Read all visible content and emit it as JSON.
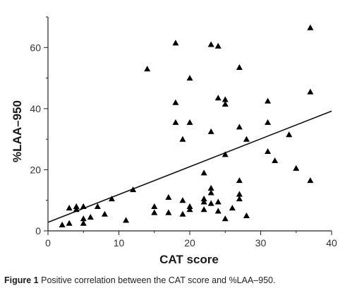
{
  "figure": {
    "label": "Figure 1",
    "caption": "Positive correlation between the CAT score and %LAA–950."
  },
  "chart_data": {
    "type": "scatter",
    "title": "",
    "xlabel": "CAT score",
    "ylabel": "%LAA–950",
    "xlim": [
      0,
      40
    ],
    "ylim": [
      0,
      70
    ],
    "xticks": [
      0,
      10,
      20,
      30,
      40
    ],
    "yticks": [
      0,
      20,
      40,
      60
    ],
    "grid": false,
    "marker": "triangle",
    "color": "#000000",
    "trendline": {
      "x": [
        0,
        40
      ],
      "y": [
        2.8,
        39.2
      ]
    },
    "points": [
      [
        2,
        2
      ],
      [
        3,
        2.5
      ],
      [
        3,
        7.5
      ],
      [
        4,
        8
      ],
      [
        4,
        7
      ],
      [
        5,
        8
      ],
      [
        5,
        4
      ],
      [
        5,
        2.5
      ],
      [
        6,
        4.5
      ],
      [
        7,
        8
      ],
      [
        8,
        5.5
      ],
      [
        9,
        10.5
      ],
      [
        11,
        3.5
      ],
      [
        12,
        13.5
      ],
      [
        14,
        53
      ],
      [
        15,
        8
      ],
      [
        15,
        6
      ],
      [
        17,
        11
      ],
      [
        17,
        6
      ],
      [
        18,
        61.5
      ],
      [
        18,
        42
      ],
      [
        18,
        35.5
      ],
      [
        19,
        30
      ],
      [
        19,
        10
      ],
      [
        19,
        5.5
      ],
      [
        20,
        50
      ],
      [
        20,
        35.5
      ],
      [
        20,
        8
      ],
      [
        20,
        7
      ],
      [
        22,
        19
      ],
      [
        22,
        10.5
      ],
      [
        22,
        9.5
      ],
      [
        22,
        7
      ],
      [
        23,
        61
      ],
      [
        23,
        32.5
      ],
      [
        23,
        14
      ],
      [
        23,
        12.5
      ],
      [
        23,
        9
      ],
      [
        24,
        60.5
      ],
      [
        24,
        43.5
      ],
      [
        24,
        9.5
      ],
      [
        24,
        6.5
      ],
      [
        25,
        43
      ],
      [
        25,
        41.5
      ],
      [
        25,
        25
      ],
      [
        25,
        4
      ],
      [
        26,
        7.5
      ],
      [
        27,
        53.5
      ],
      [
        27,
        34
      ],
      [
        27,
        16.5
      ],
      [
        27,
        12
      ],
      [
        27,
        10.5
      ],
      [
        28,
        30
      ],
      [
        28,
        5
      ],
      [
        31,
        42.5
      ],
      [
        31,
        35.5
      ],
      [
        31,
        26
      ],
      [
        32,
        23
      ],
      [
        34,
        31.5
      ],
      [
        35,
        20.5
      ],
      [
        37,
        66.5
      ],
      [
        37,
        45.5
      ],
      [
        37,
        16.5
      ]
    ]
  }
}
